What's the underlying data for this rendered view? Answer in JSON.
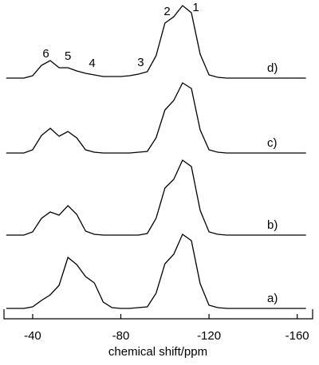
{
  "chart_data": {
    "type": "line",
    "x_label": "chemical shift/ppm",
    "x": [
      -28,
      -32,
      -36,
      -40,
      -44,
      -48,
      -52,
      -56,
      -60,
      -64,
      -68,
      -72,
      -76,
      -80,
      -84,
      -88,
      -92,
      -96,
      -100,
      -104,
      -108,
      -112,
      -116,
      -120,
      -124,
      -128,
      -132,
      -136,
      -140,
      -144,
      -148,
      -152,
      -156,
      -160,
      -164
    ],
    "series": [
      {
        "name": "a)",
        "color": "#000000",
        "values": [
          0,
          0,
          0,
          2,
          10,
          17,
          29,
          64,
          55,
          40,
          32,
          8,
          1,
          0,
          0,
          1,
          2,
          19,
          56,
          68,
          93,
          85,
          31,
          4,
          1,
          0,
          0,
          0,
          0,
          0,
          0,
          0,
          0,
          0,
          0
        ]
      },
      {
        "name": "b)",
        "color": "#000000",
        "values": [
          0,
          0,
          0,
          4,
          21,
          29,
          25,
          37,
          26,
          5,
          1,
          0,
          0,
          0,
          0,
          0,
          2,
          21,
          59,
          70,
          94,
          86,
          31,
          4,
          1,
          0,
          0,
          0,
          0,
          0,
          0,
          0,
          0,
          0,
          0
        ]
      },
      {
        "name": "c)",
        "color": "#000000",
        "values": [
          0,
          0,
          0,
          4,
          22,
          31,
          21,
          27,
          19,
          4,
          1,
          0,
          0,
          0,
          0,
          1,
          2,
          19,
          54,
          66,
          88,
          81,
          29,
          4,
          1,
          0,
          0,
          0,
          0,
          0,
          0,
          0,
          0,
          0,
          0
        ]
      },
      {
        "name": "d)",
        "color": "#000000",
        "values": [
          0,
          0,
          0,
          3,
          16,
          22,
          13,
          13,
          9,
          6,
          4,
          2,
          2,
          2,
          3,
          5,
          8,
          28,
          69,
          77,
          91,
          82,
          30,
          4,
          1,
          0,
          0,
          0,
          0,
          0,
          0,
          0,
          0,
          0,
          0
        ]
      }
    ],
    "annotations": [
      {
        "text": "1",
        "x": -114
      },
      {
        "text": "2",
        "x": -101
      },
      {
        "text": "3",
        "x": -89
      },
      {
        "text": "4",
        "x": -67
      },
      {
        "text": "5",
        "x": -56
      },
      {
        "text": "6",
        "x": -46
      }
    ],
    "xlim": [
      -27,
      -167
    ],
    "xticks": [
      -40,
      -80,
      -120,
      -160
    ],
    "ylim": [
      0,
      100
    ]
  }
}
